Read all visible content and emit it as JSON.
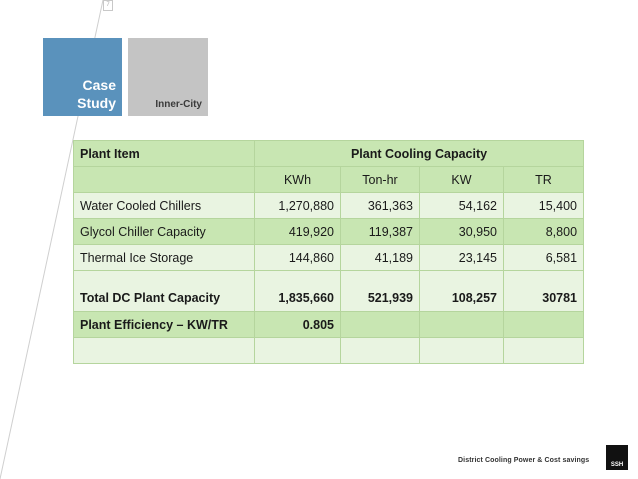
{
  "header": {
    "case_study_line1": "Case",
    "case_study_line2": "Study",
    "location": "Inner-City",
    "page_marker": "7"
  },
  "table": {
    "col_plant_item": "Plant Item",
    "col_capacity_group": "Plant Cooling Capacity",
    "units": [
      "KWh",
      "Ton-hr",
      "KW",
      "TR"
    ],
    "rows": [
      {
        "item": "Water Cooled Chillers",
        "values": [
          "1,270,880",
          "361,363",
          "54,162",
          "15,400"
        ]
      },
      {
        "item": "Glycol Chiller Capacity",
        "values": [
          "419,920",
          "119,387",
          "30,950",
          "8,800"
        ]
      },
      {
        "item": "Thermal Ice Storage",
        "values": [
          "144,860",
          "41,189",
          "23,145",
          "6,581"
        ]
      }
    ],
    "total": {
      "item": "Total DC Plant Capacity",
      "values": [
        "1,835,660",
        "521,939",
        "108,257",
        "30781"
      ]
    },
    "efficiency": {
      "item": "Plant Efficiency – KW/TR",
      "value": "0.805"
    }
  },
  "footer": {
    "caption": "District Cooling Power & Cost savings",
    "logo_text": "SSH"
  },
  "colors": {
    "case_box": "#5a92bc",
    "city_box": "#c4c4c4",
    "table_header": "#c8e6b2",
    "table_light": "#e9f4e1",
    "table_border": "#b5d59d"
  }
}
